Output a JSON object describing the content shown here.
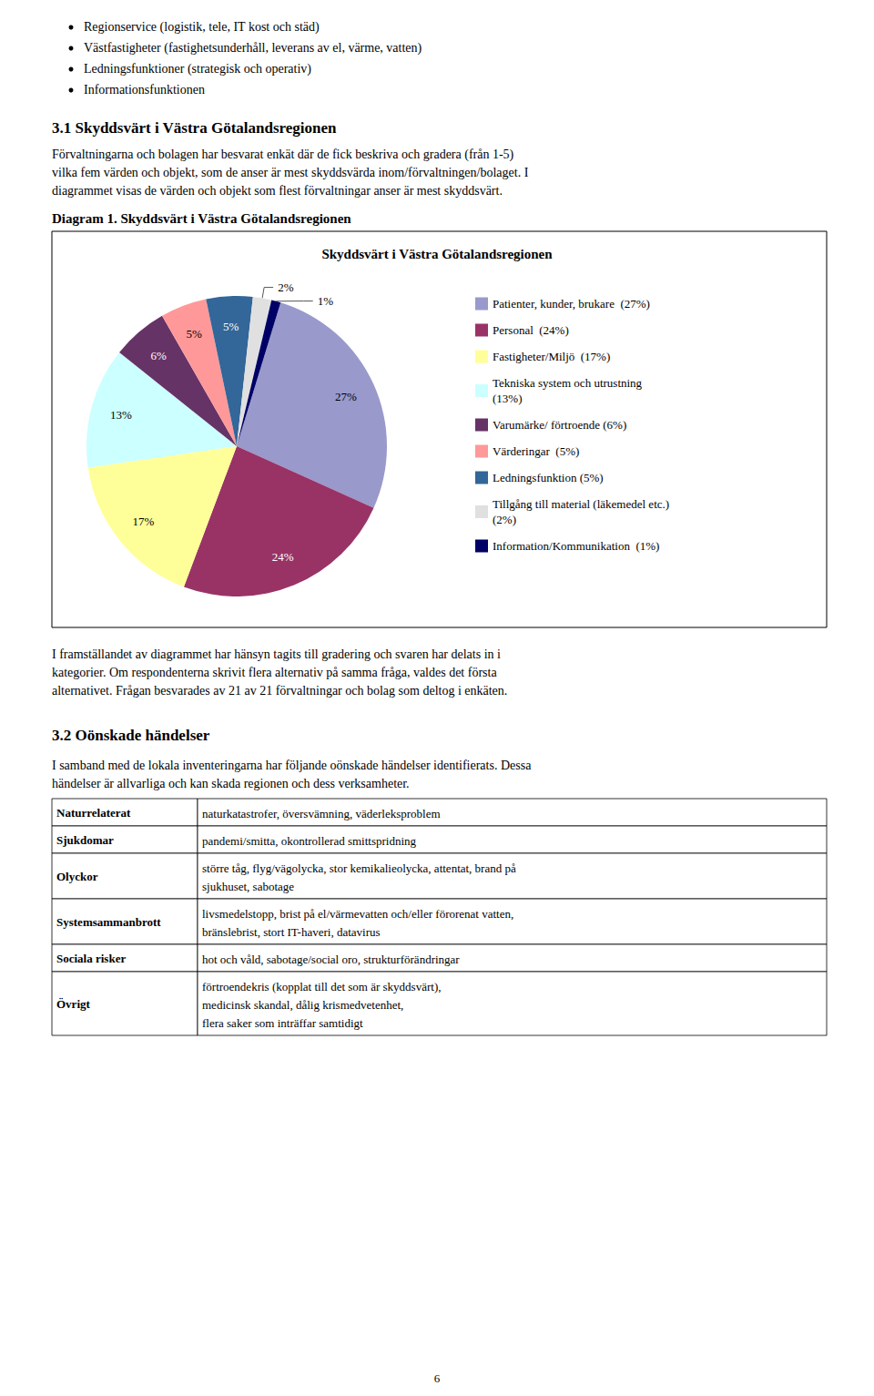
{
  "chart_data": {
    "type": "pie",
    "title": "Skyddsvärt i Västra Götalandsregionen",
    "categories": [
      "Patienter, kunder, brukare  (27%)",
      "Personal  (24%)",
      "Fastigheter/Miljö  (17%)",
      "Tekniska system och utrustning\n(13%)",
      "Varumärke/ förtroende (6%)",
      "Värderingar  (5%)",
      "Ledningsfunktion (5%)",
      "Tillgång till material (läkemedel etc.)\n(2%)",
      "Information/Kommunikation  (1%)"
    ],
    "values": [
      27,
      24,
      17,
      13,
      6,
      5,
      5,
      2,
      1
    ],
    "value_labels": [
      "27%",
      "24%",
      "17%",
      "13%",
      "6%",
      "5%",
      "5%",
      "2%",
      "1%"
    ],
    "colors": [
      "#9999CC",
      "#993366",
      "#FFFF99",
      "#CCFFFF",
      "#663366",
      "#FF9999",
      "#336699",
      "#E0E0E0",
      "#000066"
    ],
    "data_labels": true,
    "legend": "right",
    "annotations": [
      "Regionservice (logistik, tele, IT kost och städ)",
      "Västfastigheter (fastighetsunderhåll, leverans av el, värme, vatten)",
      "Ledningsfunktioner (strategisk och operativ)",
      "Informationsfunktionen",
      "3.1 Skyddsvärt i Västra Götalandsregionen",
      "Förvaltningarna och bolagen har besvarat enkät där de fick beskriva och gradera (från 1-5)",
      "vilka fem värden och objekt, som de anser är mest skyddsvärda inom/förvaltningen/bolaget. I",
      "diagrammet visas de värden och objekt som flest förvaltningar anser är mest skyddsvärt.",
      "Diagram 1. Skyddsvärt i Västra Götalandsregionen",
      "I framställandet av diagrammet har hänsyn tagits till gradering och svaren har delats in i",
      "kategorier. Om respondenterna skrivit flera alternativ på samma fråga, valdes det första",
      "alternativet. Frågan besvarades av 21 av 21 förvaltningar och bolag som deltog i enkäten.",
      "3.2 Oönskade händelser",
      "I samband med de lokala inventeringarna har följande oönskade händelser identifierats. Dessa",
      "händelser är allvarliga och kan skada regionen och dess verksamheter.",
      "6"
    ],
    "table": [
      [
        "Naturrelaterat",
        "naturkatastrofer, översvämning, väderleksproblem"
      ],
      [
        "Sjukdomar",
        "pandemi/smitta, okontrollerad smittspridning"
      ],
      [
        "Olyckor",
        "större tåg, flyg/vägolycka, stor kemikalieolycka, attentat, brand på\nsjukhuset, sabotage"
      ],
      [
        "Systemsammanbrott",
        "livsmedelstopp, brist på el/värmevatten och/eller förorenat vatten,\nbränslebrist, stort IT-haveri, datavirus"
      ],
      [
        "Sociala risker",
        "hot och våld, sabotage/social oro, strukturförändringar"
      ],
      [
        "Övrigt",
        "förtroendekris (kopplat till det som är skyddsvärt),\nmedicinsk skandal, dålig krismedvetenhet,\nflera saker som inträffar samtidigt"
      ]
    ]
  }
}
